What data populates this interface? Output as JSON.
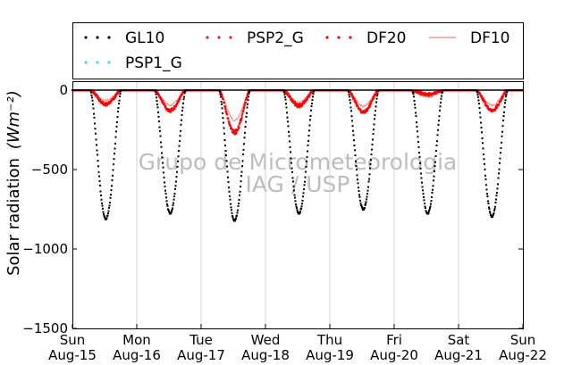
{
  "chart_data": {
    "type": "scatter",
    "xlabel": "",
    "ylabel": "Solar radiation",
    "ylabel_unit": "(Wm⁻²)",
    "ylim": [
      -1500,
      0
    ],
    "yticks": [
      0,
      -500,
      -1000,
      -1500
    ],
    "grid": "vertical",
    "legend_placement": "top",
    "x_range": [
      "2015-08-15",
      "2015-08-22"
    ],
    "xticks": [
      {
        "day": "Sun",
        "date": "Aug-15"
      },
      {
        "day": "Mon",
        "date": "Aug-16"
      },
      {
        "day": "Tue",
        "date": "Aug-17"
      },
      {
        "day": "Wed",
        "date": "Aug-18"
      },
      {
        "day": "Thu",
        "date": "Aug-19"
      },
      {
        "day": "Fri",
        "date": "Aug-20"
      },
      {
        "day": "Sat",
        "date": "Aug-21"
      },
      {
        "day": "Sun",
        "date": "Aug-22"
      }
    ],
    "series": [
      {
        "name": "GL10",
        "color": "#000000",
        "style": "dots",
        "daily_peak": [
          {
            "date": "2015-08-15",
            "value": -810
          },
          {
            "date": "2015-08-16",
            "value": -775
          },
          {
            "date": "2015-08-17",
            "value": -820
          },
          {
            "date": "2015-08-18",
            "value": -775
          },
          {
            "date": "2015-08-19",
            "value": -750
          },
          {
            "date": "2015-08-20",
            "value": -775
          },
          {
            "date": "2015-08-21",
            "value": -795
          }
        ]
      },
      {
        "name": "PSP2_G",
        "color": "#d62728",
        "style": "dots",
        "daily_peak": [
          {
            "date": "2015-08-15",
            "value": -85
          },
          {
            "date": "2015-08-16",
            "value": -125
          },
          {
            "date": "2015-08-17",
            "value": -260
          },
          {
            "date": "2015-08-18",
            "value": -95
          },
          {
            "date": "2015-08-19",
            "value": -135
          },
          {
            "date": "2015-08-20",
            "value": -25
          },
          {
            "date": "2015-08-21",
            "value": -125
          }
        ]
      },
      {
        "name": "DF20",
        "color": "#ff0000",
        "style": "dots",
        "daily_peak": [
          {
            "date": "2015-08-15",
            "value": -90
          },
          {
            "date": "2015-08-16",
            "value": -130
          },
          {
            "date": "2015-08-17",
            "value": -270
          },
          {
            "date": "2015-08-18",
            "value": -100
          },
          {
            "date": "2015-08-19",
            "value": -140
          },
          {
            "date": "2015-08-20",
            "value": -30
          },
          {
            "date": "2015-08-21",
            "value": -130
          }
        ]
      },
      {
        "name": "DF10",
        "color": "#f08080",
        "style": "line",
        "daily_peak": [
          {
            "date": "2015-08-15",
            "value": -65
          },
          {
            "date": "2015-08-16",
            "value": -95
          },
          {
            "date": "2015-08-17",
            "value": -190
          },
          {
            "date": "2015-08-18",
            "value": -75
          },
          {
            "date": "2015-08-19",
            "value": -100
          },
          {
            "date": "2015-08-20",
            "value": -45
          },
          {
            "date": "2015-08-21",
            "value": -95
          }
        ]
      },
      {
        "name": "PSP1_G",
        "color": "#40e0d0",
        "style": "dots",
        "daily_peak": []
      }
    ],
    "watermark_lines": [
      "Grupo de Micrometeorologia",
      "IAG / USP"
    ]
  }
}
